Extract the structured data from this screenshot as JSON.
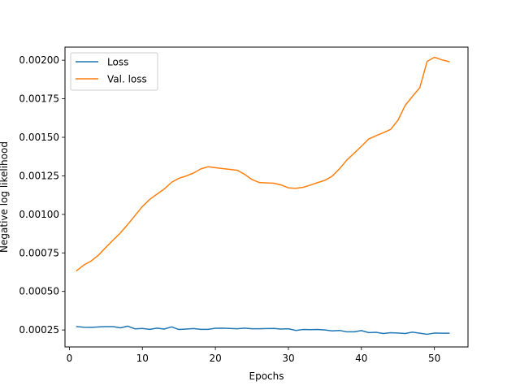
{
  "chart_data": {
    "type": "line",
    "title": "",
    "xlabel": "Epochs",
    "ylabel": "Negative log likelihood",
    "xlim": [
      -0.6,
      54.6
    ],
    "ylim": [
      0.00014,
      0.002085
    ],
    "xticks": [
      0,
      10,
      20,
      30,
      40,
      50
    ],
    "xtick_labels": [
      "0",
      "10",
      "20",
      "30",
      "40",
      "50"
    ],
    "yticks": [
      0.00025,
      0.0005,
      0.00075,
      0.001,
      0.00125,
      0.0015,
      0.00175,
      0.002
    ],
    "ytick_labels": [
      "0.00025",
      "0.00050",
      "0.00075",
      "0.00100",
      "0.00125",
      "0.00150",
      "0.00175",
      "0.00200"
    ],
    "grid": false,
    "legend_position": "upper-left",
    "x": [
      1,
      2,
      3,
      4,
      5,
      6,
      7,
      8,
      9,
      10,
      11,
      12,
      13,
      14,
      15,
      16,
      17,
      18,
      19,
      20,
      21,
      22,
      23,
      24,
      25,
      26,
      27,
      28,
      29,
      30,
      31,
      32,
      33,
      34,
      35,
      36,
      37,
      38,
      39,
      40,
      41,
      42,
      43,
      44,
      45,
      46,
      47,
      48,
      49,
      50,
      51,
      52
    ],
    "series": [
      {
        "name": "Loss",
        "color": "#1f77b4",
        "values": [
          0.000272,
          0.000268,
          0.000267,
          0.00027,
          0.000272,
          0.000272,
          0.000264,
          0.000275,
          0.000257,
          0.00026,
          0.000254,
          0.000262,
          0.000256,
          0.00027,
          0.000253,
          0.000256,
          0.000259,
          0.000254,
          0.000254,
          0.000261,
          0.000262,
          0.00026,
          0.000258,
          0.000262,
          0.000258,
          0.000258,
          0.000259,
          0.00026,
          0.000256,
          0.000258,
          0.000247,
          0.000253,
          0.000252,
          0.000253,
          0.00025,
          0.000244,
          0.000247,
          0.000238,
          0.000238,
          0.000246,
          0.000233,
          0.000235,
          0.000227,
          0.000232,
          0.00023,
          0.000227,
          0.000236,
          0.000229,
          0.000222,
          0.00023,
          0.000229,
          0.000229
        ]
      },
      {
        "name": "Val. loss",
        "color": "#ff7f0e",
        "values": [
          0.000635,
          0.000672,
          0.000698,
          0.000736,
          0.000786,
          0.000834,
          0.00088,
          0.000935,
          0.000993,
          0.001051,
          0.001097,
          0.001131,
          0.001165,
          0.001208,
          0.001234,
          0.001249,
          0.001268,
          0.001295,
          0.001309,
          0.001303,
          0.001297,
          0.001292,
          0.001286,
          0.00126,
          0.001226,
          0.001207,
          0.001204,
          0.001202,
          0.001191,
          0.001172,
          0.001169,
          0.001175,
          0.00119,
          0.001206,
          0.001221,
          0.001248,
          0.001296,
          0.001352,
          0.001397,
          0.001442,
          0.001489,
          0.00151,
          0.00153,
          0.001551,
          0.00161,
          0.001707,
          0.001766,
          0.001822,
          0.001992,
          0.002019,
          0.002003,
          0.001991
        ]
      }
    ]
  }
}
